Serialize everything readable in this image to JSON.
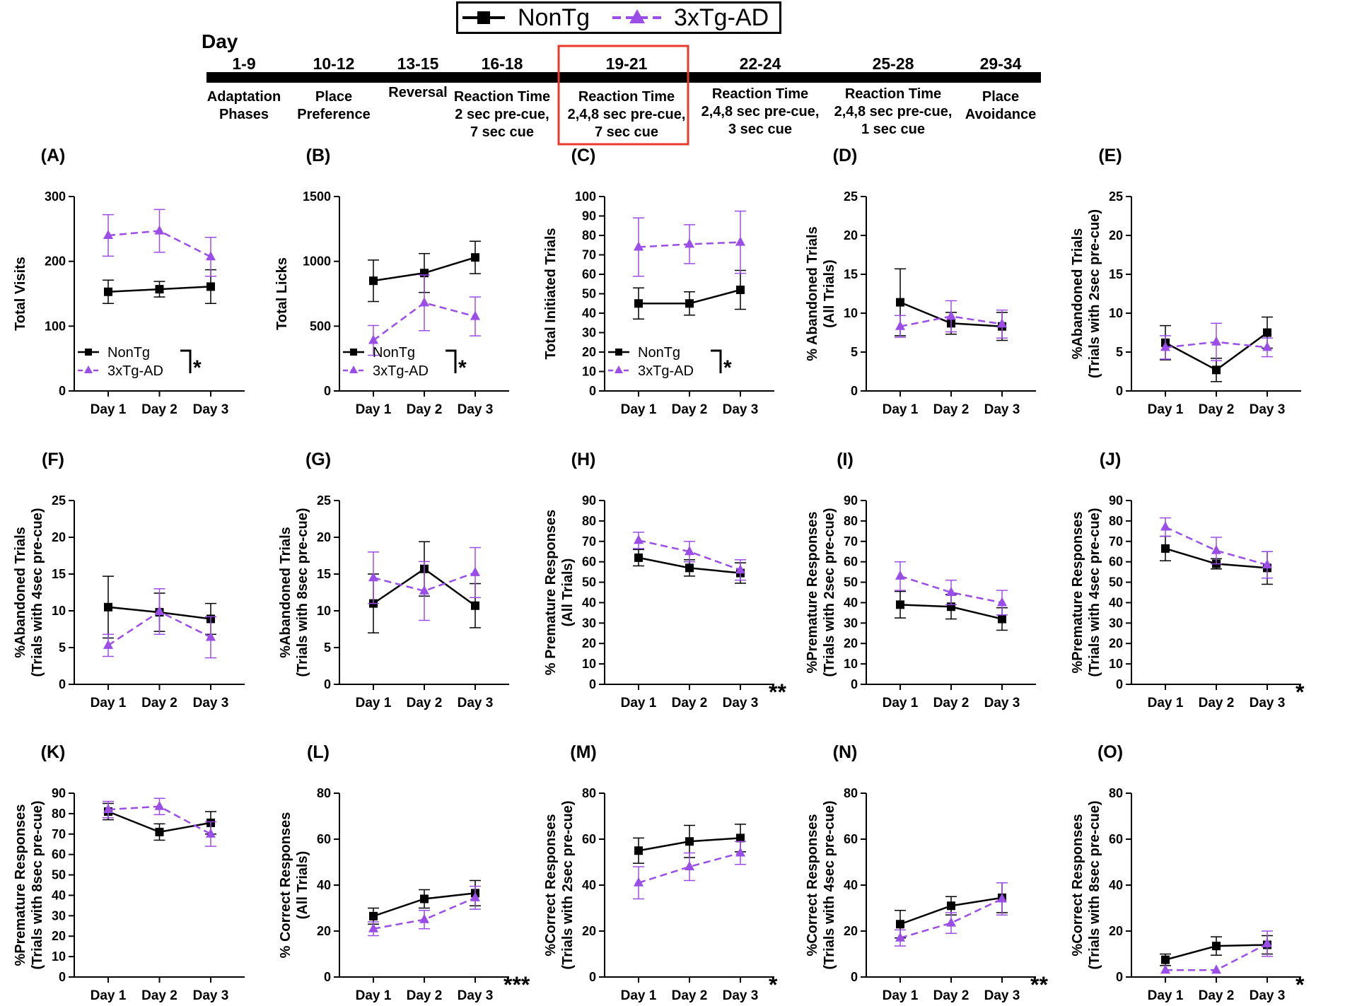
{
  "legend": {
    "items": [
      {
        "label": "NonTg",
        "color": "#000000",
        "marker": "square",
        "dash": "solid"
      },
      {
        "label": "3xTg-AD",
        "color": "#9b4de8",
        "marker": "triangle",
        "dash": "dashed"
      }
    ]
  },
  "timeline": {
    "title": "Day",
    "phases": [
      {
        "days": "1-9",
        "lines": [
          "Adaptation",
          "Phases"
        ]
      },
      {
        "days": "10-12",
        "lines": [
          "Place",
          "Preference"
        ]
      },
      {
        "days": "13-15",
        "lines": [
          "Reversal"
        ]
      },
      {
        "days": "16-18",
        "lines": [
          "Reaction Time",
          "2 sec pre-cue,",
          "7 sec cue"
        ]
      },
      {
        "days": "19-21",
        "lines": [
          "Reaction Time",
          "2,4,8 sec pre-cue,",
          "7 sec cue"
        ],
        "highlight": true
      },
      {
        "days": "22-24",
        "lines": [
          "Reaction Time",
          "2,4,8 sec pre-cue,",
          "3 sec cue"
        ]
      },
      {
        "days": "25-28",
        "lines": [
          "Reaction Time",
          "2,4,8 sec pre-cue,",
          "1 sec cue"
        ]
      },
      {
        "days": "29-34",
        "lines": [
          "Place",
          "Avoidance"
        ]
      }
    ],
    "highlight_color": "#e8392b"
  },
  "chart_data": [
    {
      "panel": "(A)",
      "type": "line",
      "ylabel": [
        "Total Visits"
      ],
      "ylim": [
        0,
        300
      ],
      "yticks": [
        0,
        100,
        200,
        300
      ],
      "categories": [
        "Day 1",
        "Day 2",
        "Day 3"
      ],
      "series": [
        {
          "name": "NonTg",
          "values": [
            153,
            157,
            161
          ],
          "err": [
            18,
            12,
            26
          ]
        },
        {
          "name": "3xTg-AD",
          "values": [
            240,
            247,
            207
          ],
          "err": [
            32,
            33,
            30
          ]
        }
      ],
      "inline_legend": true,
      "significance": "*"
    },
    {
      "panel": "(B)",
      "type": "line",
      "ylabel": [
        "Total Licks"
      ],
      "ylim": [
        0,
        1500
      ],
      "yticks": [
        0,
        500,
        1000,
        1500
      ],
      "categories": [
        "Day 1",
        "Day 2",
        "Day 3"
      ],
      "series": [
        {
          "name": "NonTg",
          "values": [
            850,
            910,
            1030
          ],
          "err": [
            160,
            150,
            125
          ]
        },
        {
          "name": "3xTg-AD",
          "values": [
            390,
            680,
            575
          ],
          "err": [
            115,
            215,
            150
          ]
        }
      ],
      "inline_legend": true,
      "significance": "*"
    },
    {
      "panel": "(C)",
      "type": "line",
      "ylabel": [
        "Total Initiated Trials"
      ],
      "ylim": [
        0,
        100
      ],
      "yticks": [
        0,
        10,
        20,
        30,
        40,
        50,
        60,
        70,
        80,
        90,
        100
      ],
      "categories": [
        "Day 1",
        "Day 2",
        "Day 3"
      ],
      "series": [
        {
          "name": "NonTg",
          "values": [
            45,
            45,
            52
          ],
          "err": [
            8,
            6,
            10
          ]
        },
        {
          "name": "3xTg-AD",
          "values": [
            74,
            75.5,
            76.5
          ],
          "err": [
            15,
            10,
            16
          ]
        }
      ],
      "inline_legend": true,
      "significance": "*"
    },
    {
      "panel": "(D)",
      "type": "line",
      "ylabel": [
        "% Abandoned Trials",
        "(All Trials)"
      ],
      "ylim": [
        0,
        25
      ],
      "yticks": [
        0,
        5,
        10,
        15,
        20,
        25
      ],
      "categories": [
        "Day 1",
        "Day 2",
        "Day 3"
      ],
      "series": [
        {
          "name": "NonTg",
          "values": [
            11.4,
            8.7,
            8.3
          ],
          "err": [
            4.3,
            1.4,
            1.8
          ]
        },
        {
          "name": "3xTg-AD",
          "values": [
            8.3,
            9.6,
            8.6
          ],
          "err": [
            1.4,
            2.0,
            1.8
          ]
        }
      ],
      "inline_legend": false,
      "significance": ""
    },
    {
      "panel": "(E)",
      "type": "line",
      "ylabel": [
        "%Abandoned Trials",
        "(Trials with 2sec pre-cue)"
      ],
      "ylim": [
        0,
        25
      ],
      "yticks": [
        0,
        5,
        10,
        15,
        20,
        25
      ],
      "categories": [
        "Day 1",
        "Day 2",
        "Day 3"
      ],
      "series": [
        {
          "name": "NonTg",
          "values": [
            6.2,
            2.7,
            7.5
          ],
          "err": [
            2.2,
            1.5,
            2.0
          ]
        },
        {
          "name": "3xTg-AD",
          "values": [
            5.6,
            6.3,
            5.6
          ],
          "err": [
            1.5,
            2.4,
            1.2
          ]
        }
      ],
      "inline_legend": false,
      "significance": ""
    },
    {
      "panel": "(F)",
      "type": "line",
      "ylabel": [
        "%Abandoned Trials",
        "(Trials with 4sec pre-cue)"
      ],
      "ylim": [
        0,
        25
      ],
      "yticks": [
        0,
        5,
        10,
        15,
        20,
        25
      ],
      "categories": [
        "Day 1",
        "Day 2",
        "Day 3"
      ],
      "series": [
        {
          "name": "NonTg",
          "values": [
            10.5,
            9.8,
            8.9
          ],
          "err": [
            4.2,
            2.6,
            2.1
          ]
        },
        {
          "name": "3xTg-AD",
          "values": [
            5.3,
            9.9,
            6.4
          ],
          "err": [
            1.5,
            3.1,
            2.8
          ]
        }
      ],
      "inline_legend": false,
      "significance": ""
    },
    {
      "panel": "(G)",
      "type": "line",
      "ylabel": [
        "%Abandoned Trials",
        "(Trials with 8sec pre-cue)"
      ],
      "ylim": [
        0,
        25
      ],
      "yticks": [
        0,
        5,
        10,
        15,
        20,
        25
      ],
      "categories": [
        "Day 1",
        "Day 2",
        "Day 3"
      ],
      "series": [
        {
          "name": "NonTg",
          "values": [
            11,
            15.7,
            10.7
          ],
          "err": [
            4,
            3.7,
            3
          ]
        },
        {
          "name": "3xTg-AD",
          "values": [
            14.5,
            12.7,
            15.2
          ],
          "err": [
            3.5,
            4,
            3.4
          ]
        }
      ],
      "inline_legend": false,
      "significance": ""
    },
    {
      "panel": "(H)",
      "type": "line",
      "ylabel": [
        "% Premature Responses",
        "(All Trials)"
      ],
      "ylim": [
        0,
        90
      ],
      "yticks": [
        0,
        10,
        20,
        30,
        40,
        50,
        60,
        70,
        80,
        90
      ],
      "categories": [
        "Day 1",
        "Day 2",
        "Day 3"
      ],
      "series": [
        {
          "name": "NonTg",
          "values": [
            62,
            57,
            54.5
          ],
          "err": [
            4,
            4,
            5
          ]
        },
        {
          "name": "3xTg-AD",
          "values": [
            70.5,
            65,
            56
          ],
          "err": [
            4,
            5,
            5
          ]
        }
      ],
      "inline_legend": false,
      "significance": "**"
    },
    {
      "panel": "(I)",
      "type": "line",
      "ylabel": [
        "%Premature Responses",
        "(Trials with 2sec pre-cue)"
      ],
      "ylim": [
        0,
        90
      ],
      "yticks": [
        0,
        10,
        20,
        30,
        40,
        50,
        60,
        70,
        80,
        90
      ],
      "categories": [
        "Day 1",
        "Day 2",
        "Day 3"
      ],
      "series": [
        {
          "name": "NonTg",
          "values": [
            39,
            38,
            32
          ],
          "err": [
            6.5,
            6,
            5.5
          ]
        },
        {
          "name": "3xTg-AD",
          "values": [
            53,
            45,
            40
          ],
          "err": [
            7,
            6,
            6
          ]
        }
      ],
      "inline_legend": false,
      "significance": ""
    },
    {
      "panel": "(J)",
      "type": "line",
      "ylabel": [
        "%Premature Responses",
        "(Trials with 4sec pre-cue)"
      ],
      "ylim": [
        0,
        90
      ],
      "yticks": [
        0,
        10,
        20,
        30,
        40,
        50,
        60,
        70,
        80,
        90
      ],
      "categories": [
        "Day 1",
        "Day 2",
        "Day 3"
      ],
      "series": [
        {
          "name": "NonTg",
          "values": [
            66.5,
            59,
            57
          ],
          "err": [
            6,
            2.5,
            8
          ]
        },
        {
          "name": "3xTg-AD",
          "values": [
            77,
            65.5,
            58.5
          ],
          "err": [
            4.5,
            6.5,
            6.5
          ]
        }
      ],
      "inline_legend": false,
      "significance": "*"
    },
    {
      "panel": "(K)",
      "type": "line",
      "ylabel": [
        "%Premature Responses",
        "(Trials with 8sec pre-cue)"
      ],
      "ylim": [
        0,
        90
      ],
      "yticks": [
        0,
        10,
        20,
        30,
        40,
        50,
        60,
        70,
        80,
        90
      ],
      "categories": [
        "Day 1",
        "Day 2",
        "Day 3"
      ],
      "series": [
        {
          "name": "NonTg",
          "values": [
            81,
            71,
            75.5
          ],
          "err": [
            4,
            4,
            5.5
          ]
        },
        {
          "name": "3xTg-AD",
          "values": [
            82,
            83.5,
            70
          ],
          "err": [
            4,
            4,
            6
          ]
        }
      ],
      "inline_legend": false,
      "significance": ""
    },
    {
      "panel": "(L)",
      "type": "line",
      "ylabel": [
        "% Correct Responses",
        "(All Trials)"
      ],
      "ylim": [
        0,
        80
      ],
      "yticks": [
        0,
        20,
        40,
        60,
        80
      ],
      "categories": [
        "Day 1",
        "Day 2",
        "Day 3"
      ],
      "series": [
        {
          "name": "NonTg",
          "values": [
            26.5,
            34,
            36.5
          ],
          "err": [
            3.5,
            4,
            5.5
          ]
        },
        {
          "name": "3xTg-AD",
          "values": [
            21,
            25,
            34.5
          ],
          "err": [
            3,
            4,
            5
          ]
        }
      ],
      "inline_legend": false,
      "significance": "***"
    },
    {
      "panel": "(M)",
      "type": "line",
      "ylabel": [
        "%Correct Responses",
        "(Trials with 2sec pre-cue)"
      ],
      "ylim": [
        0,
        80
      ],
      "yticks": [
        0,
        20,
        40,
        60,
        80
      ],
      "categories": [
        "Day 1",
        "Day 2",
        "Day 3"
      ],
      "series": [
        {
          "name": "NonTg",
          "values": [
            55,
            59,
            60.5
          ],
          "err": [
            5.5,
            7,
            6
          ]
        },
        {
          "name": "3xTg-AD",
          "values": [
            41,
            48,
            54
          ],
          "err": [
            7,
            6,
            5
          ]
        }
      ],
      "inline_legend": false,
      "significance": "*"
    },
    {
      "panel": "(N)",
      "type": "line",
      "ylabel": [
        "%Correct Responses",
        "(Trials with 4sec pre-cue)"
      ],
      "ylim": [
        0,
        80
      ],
      "yticks": [
        0,
        20,
        40,
        60,
        80
      ],
      "categories": [
        "Day 1",
        "Day 2",
        "Day 3"
      ],
      "series": [
        {
          "name": "NonTg",
          "values": [
            23,
            31,
            34.5
          ],
          "err": [
            6,
            4,
            6.5
          ]
        },
        {
          "name": "3xTg-AD",
          "values": [
            17,
            23.5,
            34
          ],
          "err": [
            3.5,
            4.5,
            7
          ]
        }
      ],
      "inline_legend": false,
      "significance": "**"
    },
    {
      "panel": "(O)",
      "type": "line",
      "ylabel": [
        "%Correct Responses",
        "(Trials with 8sec pre-cue)"
      ],
      "ylim": [
        0,
        80
      ],
      "yticks": [
        0,
        20,
        40,
        60,
        80
      ],
      "categories": [
        "Day 1",
        "Day 2",
        "Day 3"
      ],
      "series": [
        {
          "name": "NonTg",
          "values": [
            7.5,
            13.5,
            14
          ],
          "err": [
            2.5,
            4,
            4
          ]
        },
        {
          "name": "3xTg-AD",
          "values": [
            3,
            3,
            14.5
          ],
          "err": [
            0,
            0,
            5.5
          ]
        }
      ],
      "inline_legend": false,
      "significance": "*"
    }
  ]
}
